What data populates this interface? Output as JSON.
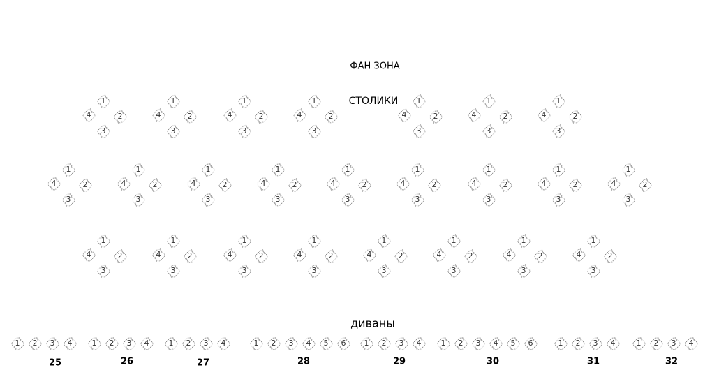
{
  "titles": {
    "fan_zone": "ФАН ЗОНА",
    "tables": "СТОЛИКИ",
    "sofas": "диваны"
  },
  "tables": {
    "seat_labels": [
      "1",
      "2",
      "3",
      "4"
    ],
    "rows": [
      {
        "count": 7
      },
      {
        "count": 9
      },
      {
        "count": 8
      }
    ]
  },
  "sofas": [
    {
      "number": "25",
      "seats": [
        "1",
        "2",
        "3",
        "4"
      ]
    },
    {
      "number": "26",
      "seats": [
        "1",
        "2",
        "3",
        "4"
      ]
    },
    {
      "number": "27",
      "seats": [
        "1",
        "2",
        "3",
        "4"
      ]
    },
    {
      "number": "28",
      "seats": [
        "1",
        "2",
        "3",
        "4",
        "5",
        "6"
      ]
    },
    {
      "number": "29",
      "seats": [
        "1",
        "2",
        "3",
        "4"
      ]
    },
    {
      "number": "30",
      "seats": [
        "1",
        "2",
        "3",
        "4",
        "5",
        "6"
      ]
    },
    {
      "number": "31",
      "seats": [
        "1",
        "2",
        "3",
        "4"
      ]
    },
    {
      "number": "32",
      "seats": [
        "1",
        "2",
        "3",
        "4"
      ]
    }
  ]
}
